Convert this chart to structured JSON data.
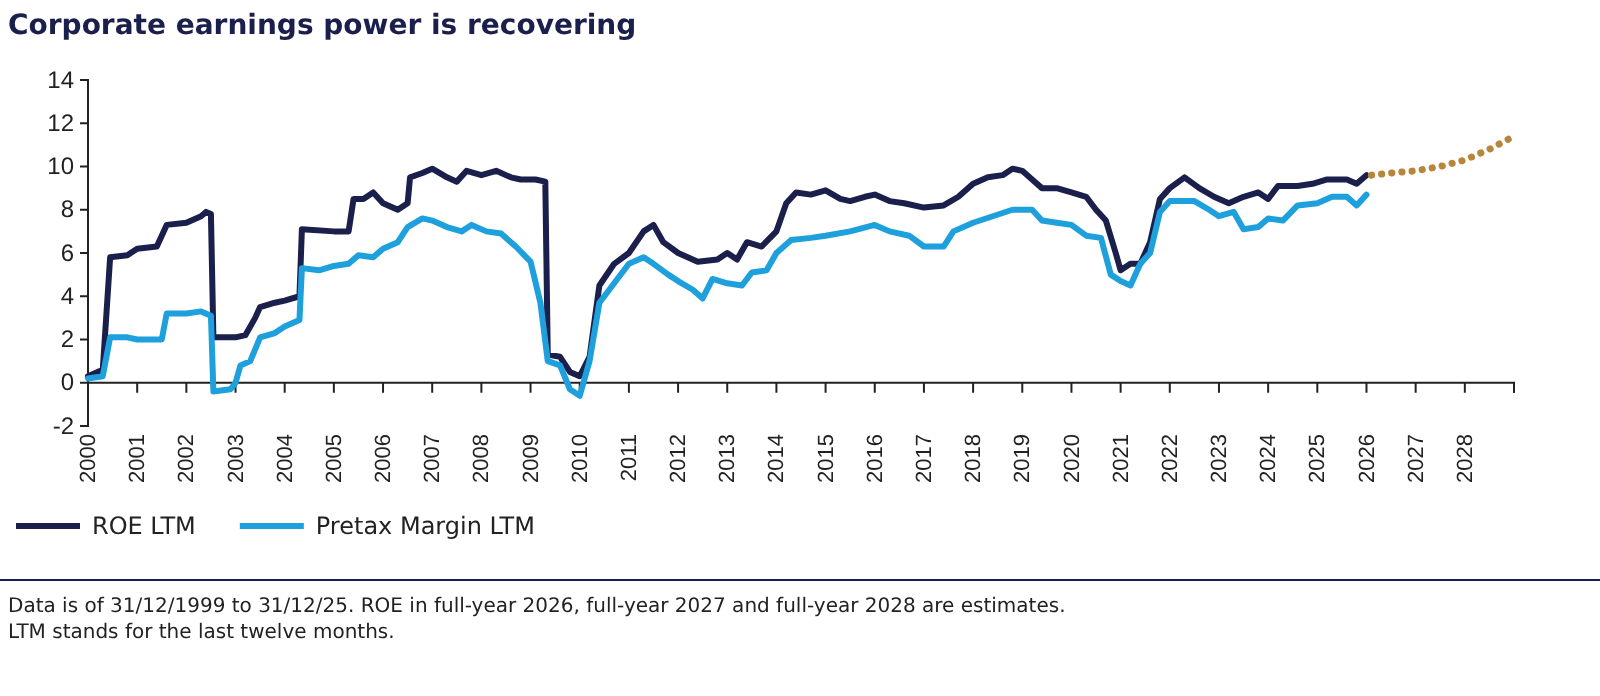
{
  "chart_data": {
    "type": "line",
    "title": "Corporate earnings power is recovering",
    "annotations": [
      "Data is of 31/12/1999 to 31/12/25. ROE in full-year 2026, full-year 2027 and full-year 2028 are estimates.\nLTM stands for the last twelve months."
    ],
    "xlim": [
      2000,
      2029
    ],
    "xticks": [
      2000,
      2001,
      2002,
      2003,
      2004,
      2005,
      2006,
      2007,
      2008,
      2009,
      2010,
      2011,
      2012,
      2013,
      2014,
      2015,
      2016,
      2017,
      2018,
      2019,
      2020,
      2021,
      2022,
      2023,
      2024,
      2025,
      2026,
      2027,
      2028,
      {
        "value": 2029,
        "label": null
      }
    ],
    "ylim": [
      -2,
      14
    ],
    "yticks": [
      -2,
      0,
      2,
      4,
      6,
      8,
      10,
      12,
      14
    ],
    "grid": false,
    "legend": "bottom left",
    "marker": "none",
    "series": [
      {
        "name": "ROE LTM",
        "color": "#1b1f4b",
        "line_style": "solid",
        "x": [
          2000.0,
          2000.3,
          2000.45,
          2000.8,
          2001.0,
          2001.4,
          2001.6,
          2002.0,
          2002.3,
          2002.4,
          2002.5,
          2002.55,
          2002.8,
          2003.0,
          2003.2,
          2003.4,
          2003.5,
          2003.8,
          2004.0,
          2004.3,
          2004.35,
          2005.0,
          2005.3,
          2005.4,
          2005.6,
          2005.8,
          2006.0,
          2006.3,
          2006.5,
          2006.55,
          2006.8,
          2007.0,
          2007.3,
          2007.5,
          2007.7,
          2008.0,
          2008.3,
          2008.6,
          2008.8,
          2009.1,
          2009.3,
          2009.35,
          2009.6,
          2009.8,
          2010.0,
          2010.2,
          2010.4,
          2010.7,
          2011.0,
          2011.3,
          2011.5,
          2011.7,
          2012.0,
          2012.4,
          2012.8,
          2013.0,
          2013.2,
          2013.4,
          2013.7,
          2014.0,
          2014.2,
          2014.4,
          2014.7,
          2015.0,
          2015.3,
          2015.5,
          2015.8,
          2016.0,
          2016.3,
          2016.6,
          2017.0,
          2017.4,
          2017.7,
          2018.0,
          2018.3,
          2018.6,
          2018.8,
          2019.0,
          2019.2,
          2019.4,
          2019.7,
          2020.0,
          2020.3,
          2020.5,
          2020.7,
          2020.9,
          2021.0,
          2021.2,
          2021.4,
          2021.6,
          2021.8,
          2022.0,
          2022.3,
          2022.6,
          2022.9,
          2023.2,
          2023.5,
          2023.8,
          2024.0,
          2024.2,
          2024.6,
          2024.9,
          2025.2,
          2025.6,
          2025.8,
          2026.0
        ],
        "values": [
          0.3,
          0.6,
          5.8,
          5.9,
          6.2,
          6.3,
          7.3,
          7.4,
          7.7,
          7.9,
          7.8,
          2.1,
          2.1,
          2.1,
          2.2,
          3.0,
          3.5,
          3.7,
          3.8,
          4.0,
          7.1,
          7.0,
          7.0,
          8.5,
          8.5,
          8.8,
          8.3,
          8.0,
          8.3,
          9.5,
          9.7,
          9.9,
          9.5,
          9.3,
          9.8,
          9.6,
          9.8,
          9.5,
          9.4,
          9.4,
          9.3,
          1.3,
          1.2,
          0.5,
          0.3,
          1.2,
          4.5,
          5.5,
          6.0,
          7.0,
          7.3,
          6.5,
          6.0,
          5.6,
          5.7,
          6.0,
          5.7,
          6.5,
          6.3,
          7.0,
          8.3,
          8.8,
          8.7,
          8.9,
          8.5,
          8.4,
          8.6,
          8.7,
          8.4,
          8.3,
          8.1,
          8.2,
          8.6,
          9.2,
          9.5,
          9.6,
          9.9,
          9.8,
          9.4,
          9.0,
          9.0,
          8.8,
          8.6,
          8.0,
          7.5,
          6.0,
          5.2,
          5.5,
          5.5,
          6.5,
          8.5,
          9.0,
          9.5,
          9.0,
          8.6,
          8.3,
          8.6,
          8.8,
          8.5,
          9.1,
          9.1,
          9.2,
          9.4,
          9.4,
          9.2,
          9.6
        ]
      },
      {
        "name": "Pretax Margin LTM",
        "color": "#1ea0dc",
        "line_style": "solid",
        "x": [
          2000.0,
          2000.3,
          2000.45,
          2000.8,
          2001.0,
          2001.5,
          2001.6,
          2002.0,
          2002.3,
          2002.5,
          2002.55,
          2002.9,
          2003.0,
          2003.1,
          2003.3,
          2003.5,
          2003.8,
          2004.0,
          2004.3,
          2004.35,
          2004.7,
          2005.0,
          2005.3,
          2005.5,
          2005.8,
          2006.0,
          2006.3,
          2006.5,
          2006.8,
          2007.0,
          2007.3,
          2007.6,
          2007.8,
          2008.1,
          2008.4,
          2008.7,
          2009.0,
          2009.2,
          2009.35,
          2009.6,
          2009.8,
          2010.0,
          2010.2,
          2010.4,
          2010.7,
          2011.0,
          2011.3,
          2011.5,
          2011.8,
          2012.0,
          2012.3,
          2012.5,
          2012.7,
          2013.0,
          2013.3,
          2013.5,
          2013.8,
          2014.0,
          2014.3,
          2014.7,
          2015.0,
          2015.5,
          2016.0,
          2016.3,
          2016.7,
          2017.0,
          2017.4,
          2017.6,
          2018.0,
          2018.4,
          2018.8,
          2019.2,
          2019.4,
          2019.7,
          2020.0,
          2020.3,
          2020.6,
          2020.8,
          2021.0,
          2021.2,
          2021.4,
          2021.6,
          2021.8,
          2022.0,
          2022.5,
          2022.8,
          2023.0,
          2023.3,
          2023.5,
          2023.8,
          2024.0,
          2024.3,
          2024.6,
          2025.0,
          2025.3,
          2025.6,
          2025.8,
          2026.0
        ],
        "values": [
          0.2,
          0.3,
          2.1,
          2.1,
          2.0,
          2.0,
          3.2,
          3.2,
          3.3,
          3.1,
          -0.4,
          -0.3,
          0.0,
          0.8,
          1.0,
          2.1,
          2.3,
          2.6,
          2.9,
          5.3,
          5.2,
          5.4,
          5.5,
          5.9,
          5.8,
          6.2,
          6.5,
          7.2,
          7.6,
          7.5,
          7.2,
          7.0,
          7.3,
          7.0,
          6.9,
          6.3,
          5.6,
          3.7,
          1.0,
          0.8,
          -0.3,
          -0.6,
          1.0,
          3.7,
          4.6,
          5.5,
          5.8,
          5.5,
          5.0,
          4.7,
          4.3,
          3.9,
          4.8,
          4.6,
          4.5,
          5.1,
          5.2,
          6.0,
          6.6,
          6.7,
          6.8,
          7.0,
          7.3,
          7.0,
          6.8,
          6.3,
          6.3,
          7.0,
          7.4,
          7.7,
          8.0,
          8.0,
          7.5,
          7.4,
          7.3,
          6.8,
          6.7,
          5.0,
          4.7,
          4.5,
          5.5,
          6.0,
          7.9,
          8.4,
          8.4,
          8.0,
          7.7,
          7.9,
          7.1,
          7.2,
          7.6,
          7.5,
          8.2,
          8.3,
          8.6,
          8.6,
          8.2,
          8.7
        ]
      },
      {
        "color": "#b8863b",
        "line_style": "dotted",
        "x": [
          2026.1,
          2026.5,
          2027.0,
          2027.5,
          2028.0,
          2028.5,
          2029.0
        ],
        "values": [
          9.6,
          9.7,
          9.8,
          10.0,
          10.3,
          10.8,
          11.4
        ]
      }
    ]
  }
}
